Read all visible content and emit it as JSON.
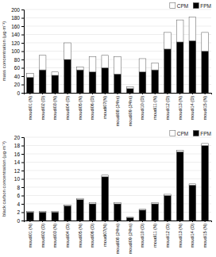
{
  "chart_data": [
    {
      "type": "bar",
      "stacked": true,
      "categories": [
        "moudi01 (N)",
        "moudi02 (D)",
        "moudi03 (N)",
        "moudi04 (D)",
        "moudi05 (N)",
        "moudi06 (D)",
        "moudi07(N)",
        "moudi08 (24hs)",
        "moudi09 (24hs)",
        "moudi10 (D)",
        "moudi11 (N)",
        "moudi12 (D)",
        "moudi13 (N)",
        "moudi14 (D)",
        "moudi15 (N)"
      ],
      "series": [
        {
          "name": "FPM",
          "color": "#000000",
          "values": [
            37,
            55,
            42,
            80,
            55,
            50,
            60,
            45,
            10,
            50,
            55,
            105,
            122,
            125,
            100
          ]
        },
        {
          "name": "CPM",
          "color": "#ffffff",
          "values": [
            10,
            35,
            8,
            40,
            7,
            37,
            30,
            42,
            4,
            32,
            17,
            40,
            53,
            57,
            45
          ]
        }
      ],
      "ylabel": "mass concentration (µg·m⁻³)",
      "ylim": [
        0,
        200
      ],
      "yticks": [
        0,
        20,
        40,
        60,
        80,
        100,
        120,
        140,
        160,
        180,
        200
      ],
      "grid": true,
      "legend": "upper right"
    },
    {
      "type": "bar",
      "stacked": true,
      "categories": [
        "moudi01 (N)",
        "moudi02 (D)",
        "moudi03 (N)",
        "moudi04 (D)",
        "moudi05 (N)",
        "moudi06 (D)",
        "moudi07(N)",
        "moudi08 (24hs)",
        "moudi09 (24hs)",
        "moudi10 (D)",
        "moudi11 (N)",
        "moudi12 (D)",
        "moudi13 (N)",
        "moudi14 (D)",
        "moudi15 (N)"
      ],
      "series": [
        {
          "name": "FPM",
          "color": "#000000",
          "values": [
            2.0,
            2.0,
            2.0,
            3.5,
            5.0,
            4.0,
            10.5,
            4.0,
            0.7,
            2.5,
            4.0,
            6.0,
            16.5,
            8.5,
            18.0
          ]
        },
        {
          "name": "CPM",
          "color": "#ffffff",
          "values": [
            0.2,
            0.2,
            0.2,
            0.2,
            0.3,
            0.3,
            0.4,
            0.3,
            0.1,
            0.2,
            0.3,
            0.3,
            0.4,
            0.3,
            0.5
          ]
        }
      ],
      "ylabel": "black carbon concentration (µg·m⁻³)",
      "ylim": [
        0,
        20
      ],
      "yticks": [
        0,
        2,
        4,
        6,
        8,
        10,
        12,
        14,
        16,
        18,
        20
      ],
      "grid": true,
      "legend": "upper right"
    }
  ]
}
